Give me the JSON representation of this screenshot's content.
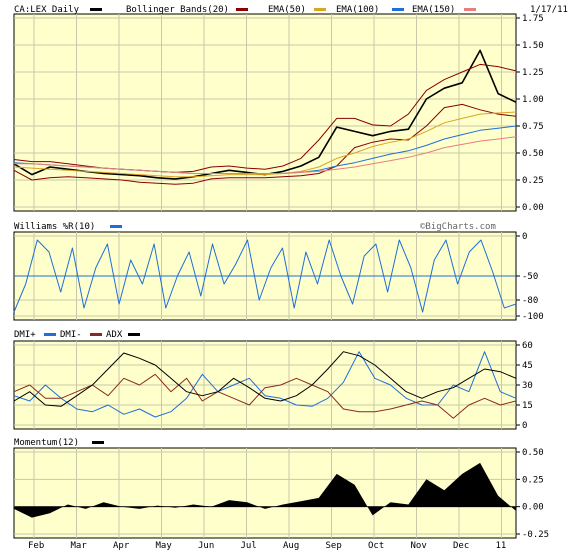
{
  "date": "1/17/11",
  "watermark": "©BigCharts.com",
  "colors": {
    "plot_bg": "#ffffcc",
    "grid": "#c8c8aa",
    "frame": "#000000",
    "price": "#000000",
    "bollinger": "#8b0000",
    "ema50": "#daa520",
    "ema100": "#1e6fd9",
    "ema150": "#e87f7f",
    "williams": "#1e6fd9",
    "williams_ref": "#1e6fd9",
    "dmi_plus": "#1e6fd9",
    "dmi_minus": "#8b2a1a",
    "adx": "#000000",
    "momentum": "#000000"
  },
  "months": [
    "Feb",
    "Mar",
    "Apr",
    "May",
    "Jun",
    "Jul",
    "Aug",
    "Sep",
    "Oct",
    "Nov",
    "Dec",
    "11"
  ],
  "chart_data": [
    {
      "type": "line",
      "panel": "price",
      "title": "CA:LEX Daily",
      "legend": [
        "CA:LEX Daily",
        "Bollinger Bands(20)",
        "EMA(50)",
        "EMA(100)",
        "EMA(150)"
      ],
      "legend_placement": "top",
      "y_ticks": [
        "0.00",
        "0.25",
        "0.50",
        "0.75",
        "1.00",
        "1.25",
        "1.50",
        "1.75"
      ],
      "ylim": [
        0,
        1.75
      ],
      "grid": true,
      "x": [
        "Jan 19",
        "Feb 1",
        "Feb 15",
        "Mar 1",
        "Mar 15",
        "Apr 1",
        "Apr 15",
        "May 1",
        "May 15",
        "Jun 1",
        "Jun 15",
        "Jul 1",
        "Jul 15",
        "Aug 1",
        "Aug 15",
        "Sep 1",
        "Sep 15",
        "Oct 1",
        "Oct 8",
        "Oct 15",
        "Nov 1",
        "Nov 15",
        "Dec 1",
        "Dec 10",
        "Dec 20",
        "Jan 1",
        "Jan 5",
        "Jan 10",
        "Jan 17"
      ],
      "series": [
        {
          "name": "CA:LEX Daily",
          "values": [
            0.4,
            0.3,
            0.37,
            0.35,
            0.33,
            0.31,
            0.3,
            0.29,
            0.27,
            0.26,
            0.28,
            0.31,
            0.34,
            0.32,
            0.3,
            0.33,
            0.38,
            0.46,
            0.74,
            0.7,
            0.66,
            0.7,
            0.72,
            1.0,
            1.1,
            1.15,
            1.45,
            1.05,
            0.97
          ]
        },
        {
          "name": "Bollinger Bands(20) upper",
          "values": [
            0.44,
            0.42,
            0.42,
            0.4,
            0.38,
            0.36,
            0.35,
            0.34,
            0.33,
            0.32,
            0.33,
            0.37,
            0.38,
            0.36,
            0.35,
            0.38,
            0.45,
            0.62,
            0.82,
            0.82,
            0.76,
            0.75,
            0.86,
            1.08,
            1.18,
            1.25,
            1.32,
            1.3,
            1.26
          ]
        },
        {
          "name": "Bollinger Bands(20) lower",
          "values": [
            0.34,
            0.25,
            0.27,
            0.28,
            0.27,
            0.26,
            0.25,
            0.23,
            0.22,
            0.21,
            0.22,
            0.26,
            0.27,
            0.27,
            0.27,
            0.28,
            0.29,
            0.31,
            0.38,
            0.55,
            0.6,
            0.63,
            0.62,
            0.75,
            0.92,
            0.95,
            0.9,
            0.86,
            0.84
          ]
        },
        {
          "name": "EMA(50)",
          "values": [
            0.37,
            0.36,
            0.35,
            0.34,
            0.33,
            0.32,
            0.31,
            0.3,
            0.29,
            0.28,
            0.28,
            0.29,
            0.3,
            0.3,
            0.3,
            0.31,
            0.33,
            0.37,
            0.45,
            0.5,
            0.56,
            0.6,
            0.63,
            0.7,
            0.78,
            0.82,
            0.86,
            0.87,
            0.88
          ]
        },
        {
          "name": "EMA(100)",
          "values": [
            0.41,
            0.4,
            0.39,
            0.38,
            0.37,
            0.36,
            0.35,
            0.34,
            0.33,
            0.32,
            0.31,
            0.31,
            0.31,
            0.31,
            0.31,
            0.31,
            0.32,
            0.34,
            0.38,
            0.41,
            0.45,
            0.49,
            0.52,
            0.57,
            0.63,
            0.67,
            0.71,
            0.73,
            0.75
          ]
        },
        {
          "name": "EMA(150)",
          "values": [
            0.4,
            0.4,
            0.39,
            0.38,
            0.37,
            0.36,
            0.35,
            0.34,
            0.33,
            0.32,
            0.31,
            0.31,
            0.31,
            0.31,
            0.31,
            0.31,
            0.32,
            0.33,
            0.35,
            0.37,
            0.4,
            0.43,
            0.46,
            0.5,
            0.55,
            0.58,
            0.61,
            0.63,
            0.65
          ]
        }
      ]
    },
    {
      "type": "line",
      "panel": "williams",
      "title": "Williams %R(10)",
      "y_ticks": [
        "0",
        "-50",
        "-80",
        "-100"
      ],
      "ylim": [
        -100,
        0
      ],
      "reference_line": -50,
      "grid": true,
      "series": [
        {
          "name": "Williams %R(10)",
          "values": [
            -95,
            -60,
            -5,
            -20,
            -70,
            -15,
            -90,
            -40,
            -10,
            -85,
            -30,
            -60,
            -10,
            -90,
            -50,
            -20,
            -75,
            -10,
            -60,
            -35,
            -5,
            -80,
            -40,
            -15,
            -90,
            -20,
            -60,
            -5,
            -50,
            -85,
            -25,
            -10,
            -70,
            -5,
            -40,
            -95,
            -30,
            -5,
            -60,
            -20,
            -5,
            -45,
            -90,
            -85
          ]
        }
      ]
    },
    {
      "type": "line",
      "panel": "dmi",
      "legend": [
        "DMI+",
        "DMI-",
        "ADX"
      ],
      "y_ticks": [
        "0",
        "15",
        "30",
        "45",
        "60"
      ],
      "ylim": [
        0,
        60
      ],
      "grid": true,
      "series": [
        {
          "name": "DMI+",
          "values": [
            22,
            18,
            30,
            20,
            12,
            10,
            15,
            8,
            12,
            6,
            10,
            20,
            38,
            25,
            30,
            35,
            22,
            20,
            15,
            14,
            20,
            32,
            55,
            35,
            30,
            20,
            15,
            15,
            30,
            25,
            55,
            25,
            20
          ]
        },
        {
          "name": "DMI-",
          "values": [
            25,
            30,
            20,
            20,
            25,
            30,
            22,
            35,
            30,
            38,
            25,
            35,
            18,
            25,
            20,
            15,
            28,
            30,
            35,
            30,
            25,
            12,
            10,
            10,
            12,
            15,
            18,
            15,
            5,
            15,
            20,
            15,
            18
          ]
        },
        {
          "name": "ADX",
          "values": [
            18,
            25,
            15,
            14,
            22,
            30,
            42,
            54,
            50,
            45,
            35,
            25,
            22,
            25,
            35,
            28,
            20,
            18,
            22,
            30,
            42,
            55,
            52,
            45,
            35,
            25,
            20,
            25,
            28,
            35,
            42,
            40,
            35
          ]
        }
      ]
    },
    {
      "type": "area",
      "panel": "momentum",
      "title": "Momentum(12)",
      "y_ticks": [
        "0.50",
        "0.25",
        "0.00",
        "-0.25"
      ],
      "ylim": [
        -0.25,
        0.5
      ],
      "grid": true,
      "series": [
        {
          "name": "Momentum(12)",
          "values": [
            -0.02,
            -0.1,
            -0.06,
            0.02,
            -0.02,
            0.04,
            0.0,
            -0.02,
            0.01,
            -0.01,
            0.02,
            0.0,
            0.06,
            0.04,
            -0.02,
            0.02,
            0.05,
            0.08,
            0.3,
            0.2,
            -0.08,
            0.04,
            0.02,
            0.25,
            0.15,
            0.3,
            0.4,
            0.1,
            -0.04
          ]
        }
      ]
    }
  ]
}
